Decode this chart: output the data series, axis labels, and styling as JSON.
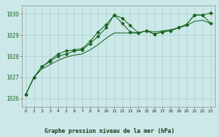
{
  "xlabel": "Graphe pression niveau de la mer (hPa)",
  "xlim": [
    -0.5,
    23.5
  ],
  "ylim": [
    1025.6,
    1030.4
  ],
  "yticks": [
    1026,
    1027,
    1028,
    1029,
    1030
  ],
  "xticks": [
    0,
    1,
    2,
    3,
    4,
    5,
    6,
    7,
    8,
    9,
    10,
    11,
    12,
    13,
    14,
    15,
    16,
    17,
    18,
    19,
    20,
    21,
    22,
    23
  ],
  "bg_color": "#cce8e8",
  "grid_color": "#aacccc",
  "line_color": "#1a6620",
  "line1_x": [
    0,
    1,
    2,
    3,
    4,
    5,
    6,
    7,
    8,
    9,
    10,
    11,
    12,
    13,
    14,
    15,
    16,
    17,
    18,
    19,
    20,
    21,
    22,
    23
  ],
  "line1_y": [
    1026.2,
    1027.0,
    1027.5,
    1027.8,
    1028.1,
    1028.25,
    1028.3,
    1028.35,
    1028.7,
    1029.15,
    1029.5,
    1029.95,
    1029.8,
    1029.45,
    1029.1,
    1029.2,
    1029.05,
    1029.15,
    1029.2,
    1029.35,
    1029.5,
    1029.95,
    1029.95,
    1030.05
  ],
  "line2_x": [
    0,
    1,
    2,
    3,
    4,
    5,
    6,
    7,
    8,
    9,
    10,
    11,
    12,
    13,
    14,
    15,
    16,
    17,
    18,
    19,
    20,
    21,
    22,
    23
  ],
  "line2_y": [
    1026.2,
    1027.0,
    1027.5,
    1027.75,
    1028.0,
    1028.1,
    1028.25,
    1028.3,
    1028.6,
    1028.95,
    1029.35,
    1029.95,
    1029.55,
    1029.15,
    1029.1,
    1029.2,
    1029.05,
    1029.15,
    1029.2,
    1029.35,
    1029.5,
    1029.95,
    1029.95,
    1029.55
  ],
  "line3_x": [
    0,
    1,
    2,
    3,
    4,
    5,
    6,
    7,
    8,
    9,
    10,
    11,
    12,
    13,
    14,
    15,
    16,
    17,
    18,
    19,
    20,
    21,
    22,
    23
  ],
  "line3_y": [
    1026.2,
    1027.0,
    1027.4,
    1027.6,
    1027.8,
    1027.95,
    1028.05,
    1028.1,
    1028.3,
    1028.55,
    1028.85,
    1029.1,
    1029.1,
    1029.1,
    1029.1,
    1029.2,
    1029.15,
    1029.2,
    1029.25,
    1029.35,
    1029.45,
    1029.65,
    1029.7,
    1029.55
  ],
  "marker": "D",
  "markersize": 2.5,
  "linewidth": 0.8
}
